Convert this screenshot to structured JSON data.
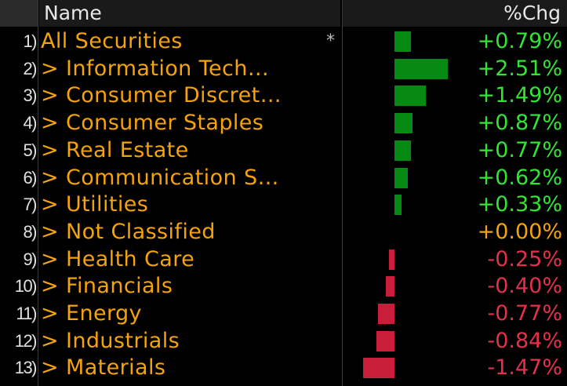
{
  "header": {
    "name_label": "Name",
    "chg_label": "%Chg"
  },
  "colors": {
    "label": "#f5a30a",
    "positive": "#33e533",
    "negative": "#e5304a",
    "neutral": "#f5a30a",
    "bar_positive": "#078a14",
    "bar_negative": "#c81e3c"
  },
  "rows": [
    {
      "index": "1)",
      "name": "All Securities",
      "star": "*",
      "chg": 0.79,
      "chg_text": "+0.79%"
    },
    {
      "index": "2)",
      "name": "> Information Tech…",
      "star": "",
      "chg": 2.51,
      "chg_text": "+2.51%"
    },
    {
      "index": "3)",
      "name": "> Consumer Discret…",
      "star": "",
      "chg": 1.49,
      "chg_text": "+1.49%"
    },
    {
      "index": "4)",
      "name": "> Consumer Staples",
      "star": "",
      "chg": 0.87,
      "chg_text": "+0.87%"
    },
    {
      "index": "5)",
      "name": "> Real Estate",
      "star": "",
      "chg": 0.77,
      "chg_text": "+0.77%"
    },
    {
      "index": "6)",
      "name": "> Communication S…",
      "star": "",
      "chg": 0.62,
      "chg_text": "+0.62%"
    },
    {
      "index": "7)",
      "name": "> Utilities",
      "star": "",
      "chg": 0.33,
      "chg_text": "+0.33%"
    },
    {
      "index": "8)",
      "name": "> Not Classified",
      "star": "",
      "chg": 0.0,
      "chg_text": "+0.00%"
    },
    {
      "index": "9)",
      "name": "> Health Care",
      "star": "",
      "chg": -0.25,
      "chg_text": "-0.25%"
    },
    {
      "index": "10)",
      "name": "> Financials",
      "star": "",
      "chg": -0.4,
      "chg_text": "-0.40%"
    },
    {
      "index": "11)",
      "name": "> Energy",
      "star": "",
      "chg": -0.77,
      "chg_text": "-0.77%"
    },
    {
      "index": "12)",
      "name": "> Industrials",
      "star": "",
      "chg": -0.84,
      "chg_text": "-0.84%"
    },
    {
      "index": "13)",
      "name": "> Materials",
      "star": "",
      "chg": -1.47,
      "chg_text": "-1.47%"
    }
  ]
}
